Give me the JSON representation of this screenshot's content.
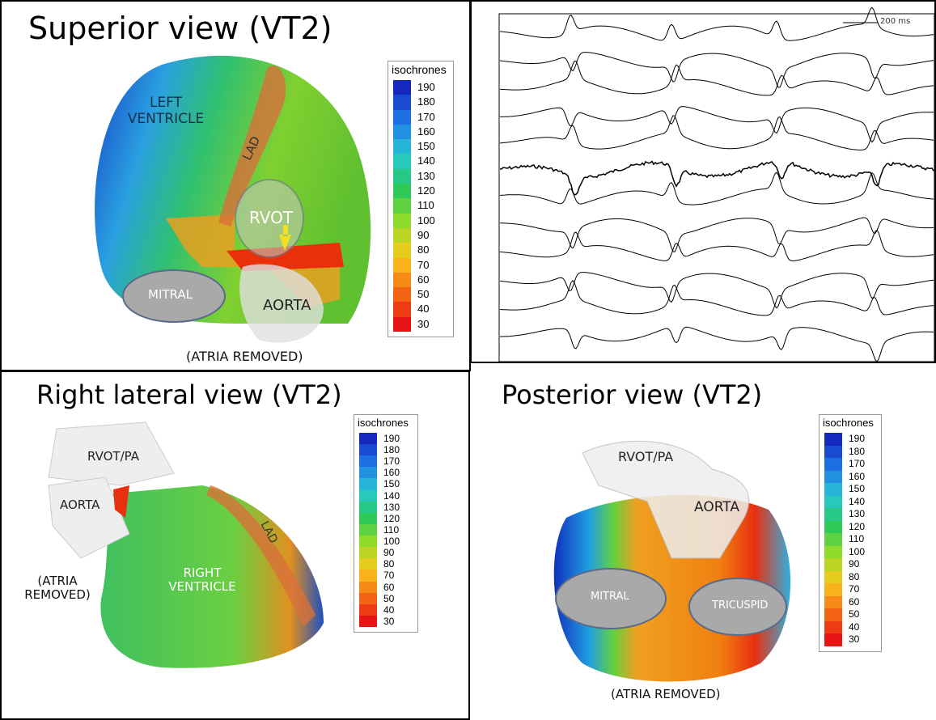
{
  "panels": [
    {
      "title": "Superior view (VT2)",
      "labels": [
        "LEFT VENTRICLE",
        "LAD",
        "RVOT",
        "MITRAL",
        "AORTA",
        "(ATRIA REMOVED)"
      ],
      "legend": {
        "title": "isochrones",
        "values": [
          190,
          180,
          170,
          160,
          150,
          140,
          130,
          120,
          110,
          100,
          90,
          80,
          70,
          60,
          50,
          40,
          30
        ]
      }
    },
    {
      "scale": "200 ms"
    },
    {
      "title": "Right lateral view (VT2)",
      "labels": [
        "RVOT/PA",
        "AORTA",
        "(ATRIA REMOVED)",
        "RIGHT VENTRICLE",
        "LAD"
      ],
      "legend": {
        "title": "isochrones",
        "values": [
          190,
          180,
          170,
          160,
          150,
          140,
          130,
          120,
          110,
          100,
          90,
          80,
          70,
          60,
          50,
          40,
          30
        ]
      }
    },
    {
      "title": "Posterior view (VT2)",
      "labels": [
        "RVOT/PA",
        "AORTA",
        "MITRAL",
        "TRICUSPID",
        "(ATRIA REMOVED)"
      ],
      "legend": {
        "title": "isochrones",
        "values": [
          190,
          180,
          170,
          160,
          150,
          140,
          130,
          120,
          110,
          100,
          90,
          80,
          70,
          60,
          50,
          40,
          30
        ]
      }
    }
  ]
}
